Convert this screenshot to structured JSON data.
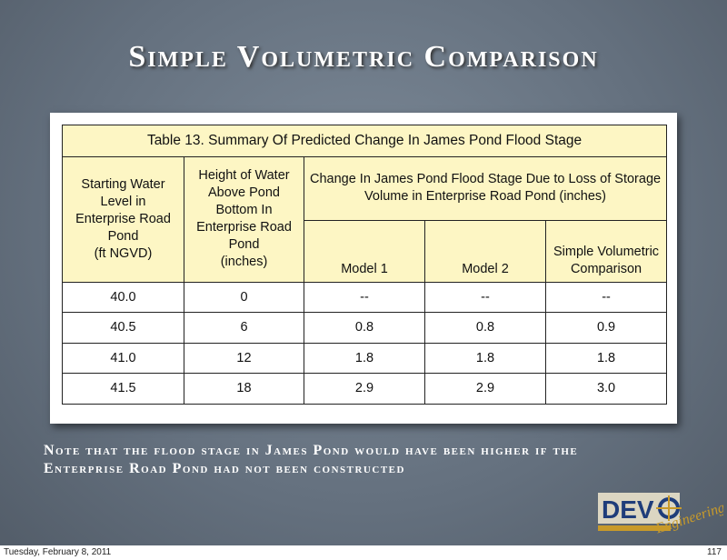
{
  "title": "Simple Volumetric Comparison",
  "table": {
    "caption": "Table 13.  Summary Of Predicted Change In James Pond Flood Stage",
    "header": {
      "starting_level": [
        "Starting Water",
        "Level in",
        "Enterprise Road",
        "Pond",
        "(ft NGVD)"
      ],
      "height": [
        "Height of Water",
        "Above Pond",
        "Bottom In",
        "Enterprise Road",
        "Pond",
        "(inches)"
      ],
      "change": [
        "Change In James Pond Flood Stage Due to Loss of Storage",
        "Volume in Enterprise Road Pond (inches)"
      ],
      "sub": [
        [
          "Model 1"
        ],
        [
          "Model 2"
        ],
        [
          "Simple Volumetric",
          "Comparison"
        ]
      ]
    },
    "rows": [
      [
        "40.0",
        "0",
        "--",
        "--",
        "--"
      ],
      [
        "40.5",
        "6",
        "0.8",
        "0.8",
        "0.9"
      ],
      [
        "41.0",
        "12",
        "1.8",
        "1.8",
        "1.8"
      ],
      [
        "41.5",
        "18",
        "2.9",
        "2.9",
        "3.0"
      ]
    ]
  },
  "note": [
    "Note that the flood stage in James Pond would have been higher if the",
    "Enterprise Road Pond had not been constructed"
  ],
  "logo": {
    "name": "DEV",
    "tagline": "Engineering"
  },
  "footer": {
    "date": "Tuesday, February 8, 2011",
    "page": "117"
  }
}
